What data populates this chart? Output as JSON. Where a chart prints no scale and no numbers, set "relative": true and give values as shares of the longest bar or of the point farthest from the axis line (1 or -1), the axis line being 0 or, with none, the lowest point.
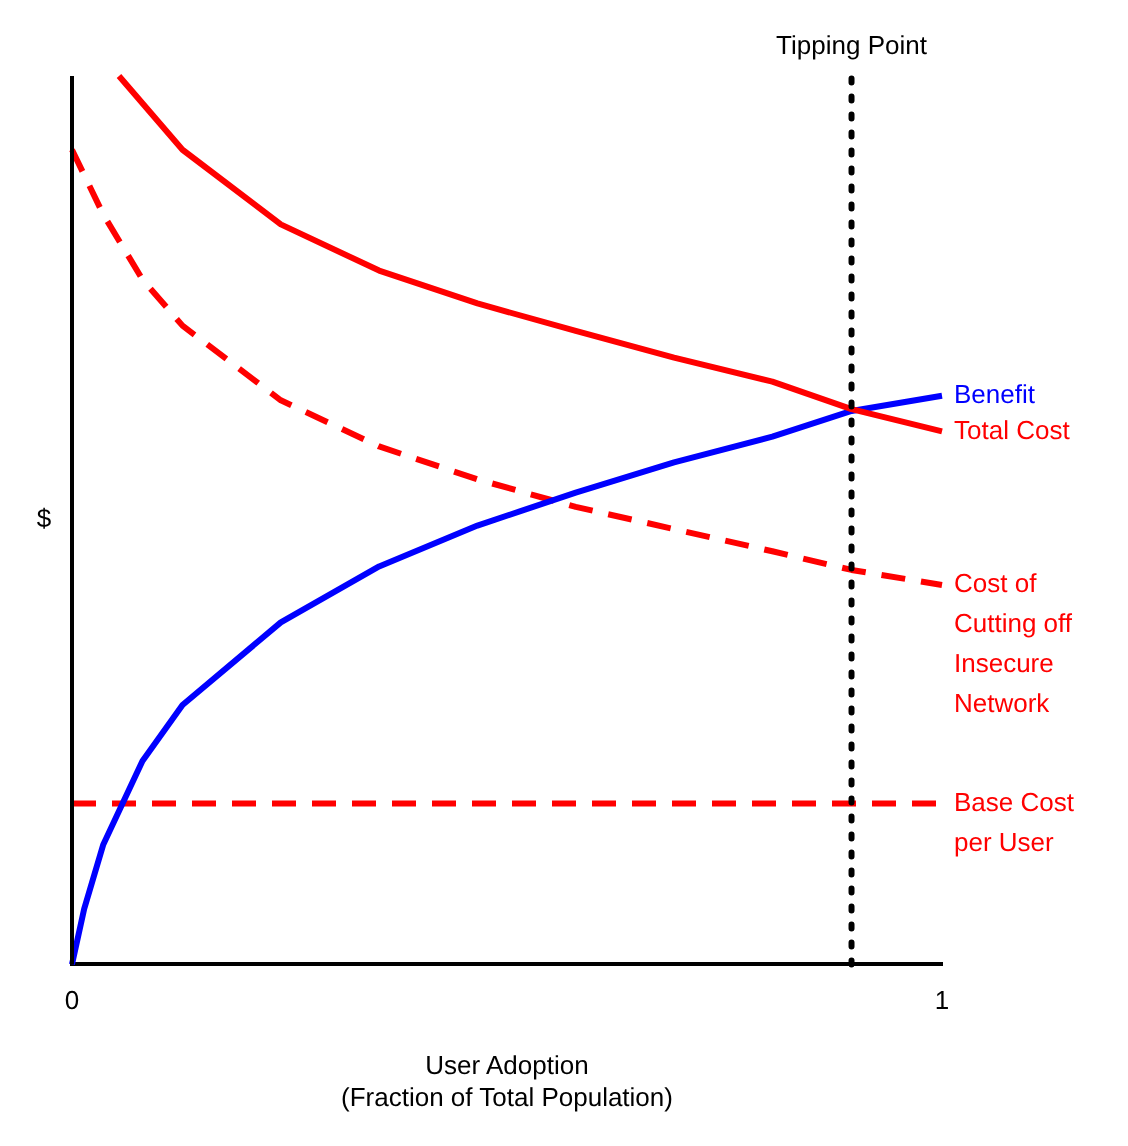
{
  "chart_data": {
    "type": "line",
    "relative": true,
    "xlabel": "User Adoption\n(Fraction of Total Population)",
    "ylabel": "$",
    "xlim": [
      0,
      1
    ],
    "xticks": [
      0,
      1
    ],
    "grid": false,
    "legend": false,
    "marker": "none",
    "series": [
      {
        "name": "Total Cost",
        "color": "#ff0000",
        "line_style": "solid",
        "x": [
          0.054,
          0.127,
          0.24,
          0.353,
          0.466,
          0.579,
          0.692,
          0.805,
          0.896,
          1.0
        ],
        "values": [
          1.0,
          0.917,
          0.833,
          0.781,
          0.744,
          0.713,
          0.683,
          0.656,
          0.625,
          0.6
        ]
      },
      {
        "name": "Benefit",
        "color": "#0000ff",
        "line_style": "solid",
        "x": [
          0,
          0.014,
          0.036,
          0.081,
          0.127,
          0.24,
          0.353,
          0.466,
          0.579,
          0.692,
          0.805,
          0.896,
          1.0
        ],
        "values": [
          0,
          0.0625,
          0.135,
          0.229,
          0.292,
          0.385,
          0.448,
          0.494,
          0.531,
          0.565,
          0.594,
          0.623,
          0.64
        ]
      },
      {
        "name": "Cost of Cutting off Insecure Network",
        "color": "#ff0000",
        "line_style": "dashed",
        "x": [
          0,
          0.036,
          0.081,
          0.127,
          0.24,
          0.353,
          0.466,
          0.579,
          0.692,
          0.805,
          0.896,
          1.0
        ],
        "values": [
          0.917,
          0.844,
          0.771,
          0.719,
          0.635,
          0.583,
          0.546,
          0.515,
          0.49,
          0.465,
          0.444,
          0.427
        ]
      },
      {
        "name": "Base Cost per User",
        "color": "#ff0000",
        "line_style": "dashed",
        "x": [
          0,
          1
        ],
        "values": [
          0.181,
          0.181
        ]
      }
    ],
    "ref_lines": [
      {
        "axis": "x",
        "value": 0.896,
        "label": "Tipping Point",
        "color": "#000000",
        "line_style": "dotted"
      }
    ]
  }
}
